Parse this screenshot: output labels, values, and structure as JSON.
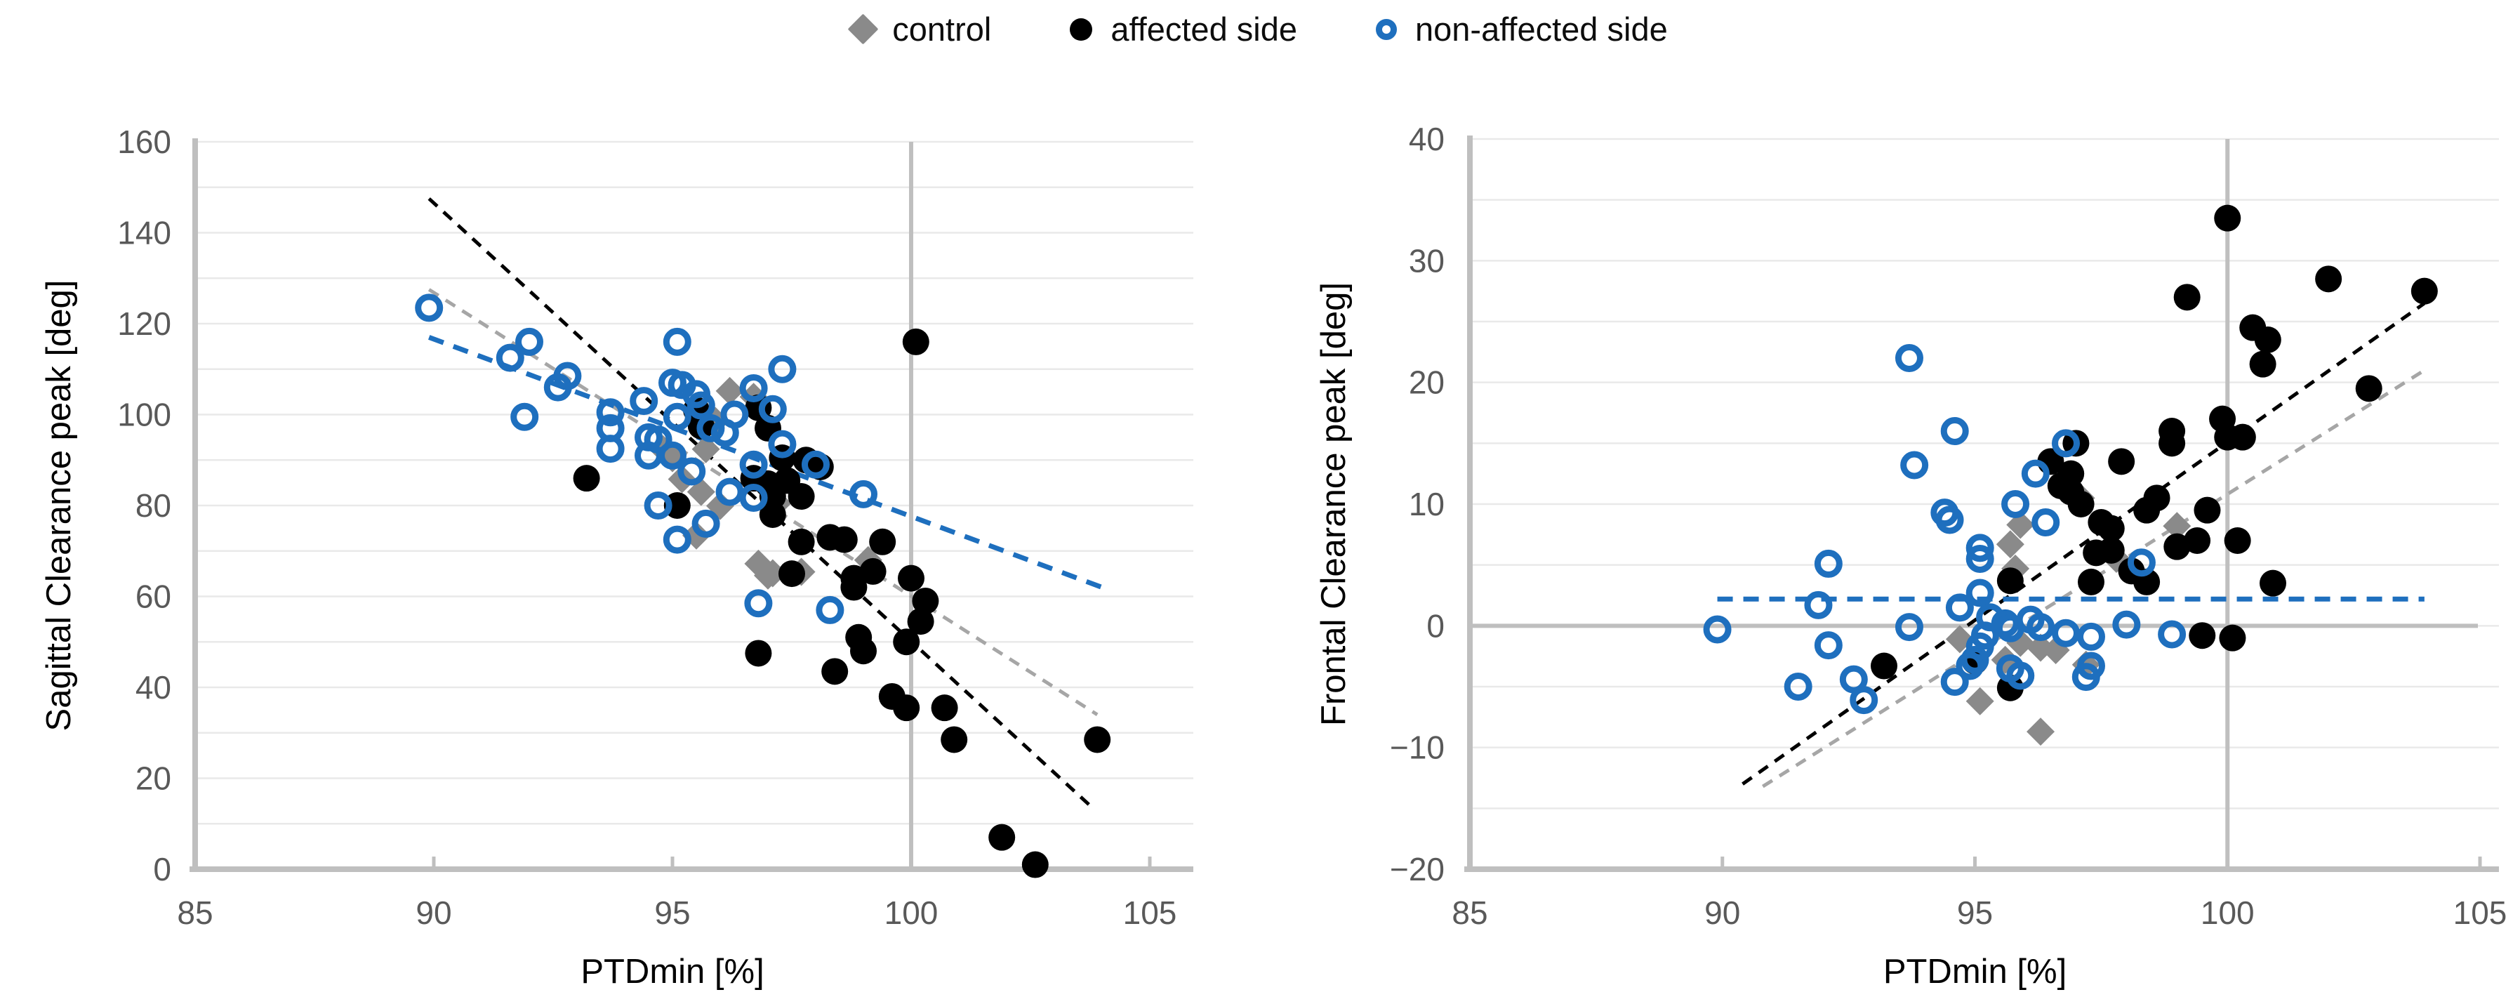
{
  "legend": {
    "items": [
      {
        "label": "control",
        "series": "control"
      },
      {
        "label": "affected side",
        "series": "affected"
      },
      {
        "label": "non-affected side",
        "series": "non_affected"
      }
    ]
  },
  "colors": {
    "control_marker": "#8a8a8a",
    "affected_marker": "#000000",
    "non_affected_marker": "#1e6fbe",
    "trend_control": "#a6a6a6",
    "trend_affected": "#000000",
    "trend_non_affected": "#1e6fbe",
    "axis_line": "#bfbfbf",
    "gridline": "#e9e9e9",
    "tick_label": "#595959",
    "axis_title": "#000000"
  },
  "chart_data": [
    {
      "type": "scatter",
      "panel": "left",
      "xlabel": "PTDmin [%]",
      "ylabel": "Sagittal Clearance peak  [deg]",
      "xlim": [
        85,
        105
      ],
      "ylim": [
        0,
        160
      ],
      "xticks": [
        85,
        90,
        95,
        100,
        105
      ],
      "yticks": [
        0,
        20,
        40,
        60,
        80,
        100,
        120,
        140,
        160
      ],
      "grid": "on",
      "gridline_step_y": 10,
      "ref_line_x": 100,
      "ref_line_y": null,
      "legend_position": "top-center",
      "series": [
        {
          "name": "control",
          "marker": "diamond",
          "points": [
            [
              96.2,
              105.2
            ],
            [
              96.7,
              103.9
            ],
            [
              95.9,
              98.6
            ],
            [
              94.8,
              92.4
            ],
            [
              95.7,
              92.4
            ],
            [
              95.0,
              90.4
            ],
            [
              95.2,
              85.8
            ],
            [
              95.6,
              83.0
            ],
            [
              96.0,
              79.9
            ],
            [
              97.2,
              80.5
            ],
            [
              95.5,
              73.4
            ],
            [
              96.8,
              67.2
            ],
            [
              97.0,
              64.6
            ],
            [
              99.1,
              68.0
            ],
            [
              97.7,
              65.4
            ],
            [
              97.1,
              65.1
            ]
          ]
        },
        {
          "name": "affected side",
          "marker": "filled-circle",
          "points": [
            [
              93.2,
              86
            ],
            [
              95.1,
              80
            ],
            [
              95.5,
              101
            ],
            [
              96.8,
              101.5
            ],
            [
              95.6,
              97.5
            ],
            [
              97.0,
              97
            ],
            [
              100.1,
              116
            ],
            [
              97.3,
              90.5
            ],
            [
              97.8,
              90
            ],
            [
              98.1,
              88.5
            ],
            [
              97.4,
              85.5
            ],
            [
              96.7,
              86
            ],
            [
              97.0,
              84.8
            ],
            [
              97.1,
              82
            ],
            [
              97.7,
              82
            ],
            [
              97.1,
              78
            ],
            [
              97.7,
              72
            ],
            [
              98.3,
              73
            ],
            [
              98.6,
              72.5
            ],
            [
              99.4,
              72
            ],
            [
              97.5,
              65
            ],
            [
              98.8,
              64
            ],
            [
              99.2,
              65.5
            ],
            [
              100.0,
              64
            ],
            [
              98.8,
              62
            ],
            [
              100.3,
              59
            ],
            [
              100.2,
              54.5
            ],
            [
              98.9,
              51
            ],
            [
              99.0,
              48
            ],
            [
              99.9,
              50
            ],
            [
              96.8,
              47.5
            ],
            [
              98.4,
              43.5
            ],
            [
              99.6,
              38
            ],
            [
              99.9,
              35.5
            ],
            [
              100.7,
              35.5
            ],
            [
              100.9,
              28.5
            ],
            [
              103.9,
              28.5
            ],
            [
              101.9,
              7
            ],
            [
              102.6,
              1
            ]
          ]
        },
        {
          "name": "non-affected side",
          "marker": "open-circle",
          "points": [
            [
              89.9,
              123.5
            ],
            [
              92.0,
              116
            ],
            [
              91.6,
              112.5
            ],
            [
              92.8,
              108.5
            ],
            [
              92.6,
              106
            ],
            [
              91.9,
              99.5
            ],
            [
              93.7,
              100.5
            ],
            [
              93.7,
              97
            ],
            [
              93.7,
              92.5
            ],
            [
              94.4,
              103
            ],
            [
              95.1,
              116
            ],
            [
              95.0,
              107
            ],
            [
              95.2,
              106.5
            ],
            [
              95.5,
              104.5
            ],
            [
              95.6,
              102
            ],
            [
              96.3,
              100
            ],
            [
              95.1,
              99.5
            ],
            [
              94.5,
              95
            ],
            [
              94.7,
              94.5
            ],
            [
              95.8,
              97
            ],
            [
              96.1,
              96
            ],
            [
              94.5,
              91
            ],
            [
              95.0,
              91
            ],
            [
              95.4,
              87.5
            ],
            [
              96.7,
              89
            ],
            [
              96.7,
              105.8
            ],
            [
              97.3,
              110
            ],
            [
              97.1,
              101.2
            ],
            [
              97.3,
              93.5
            ],
            [
              98.0,
              89
            ],
            [
              96.2,
              83
            ],
            [
              96.7,
              81.7
            ],
            [
              94.7,
              80
            ],
            [
              95.7,
              76
            ],
            [
              95.1,
              72.5
            ],
            [
              99.0,
              82.5
            ],
            [
              98.3,
              57
            ],
            [
              96.8,
              58.5
            ]
          ]
        }
      ],
      "trendlines": [
        {
          "series": "control",
          "style": "dashed",
          "x1": 89.9,
          "y1": 127.5,
          "x2": 103.9,
          "y2": 34
        },
        {
          "series": "affected",
          "style": "dashed",
          "x1": 89.9,
          "y1": 147.5,
          "x2": 103.8,
          "y2": 13.5
        },
        {
          "series": "non_affected",
          "style": "dashed",
          "x1": 89.9,
          "y1": 117,
          "x2": 104.0,
          "y2": 62
        }
      ]
    },
    {
      "type": "scatter",
      "panel": "right",
      "xlabel": "PTDmin [%]",
      "ylabel": "Frontal Clearance peak  [deg]",
      "xlim": [
        85,
        105
      ],
      "ylim": [
        -20,
        40
      ],
      "xticks": [
        85,
        90,
        95,
        100,
        105
      ],
      "yticks": [
        -20,
        -10,
        0,
        10,
        20,
        30,
        40
      ],
      "grid": "on",
      "gridline_step_y": 5,
      "ref_line_x": 100,
      "ref_line_y": 0,
      "legend_position": "top-center",
      "series": [
        {
          "name": "control",
          "marker": "diamond",
          "points": [
            [
              95.9,
              8.3
            ],
            [
              95.7,
              6.7
            ],
            [
              95.8,
              4.7
            ],
            [
              97.8,
              5.5
            ],
            [
              99.0,
              8.2
            ],
            [
              97.1,
              10.5
            ],
            [
              94.7,
              -1.1
            ],
            [
              95.9,
              -1.4
            ],
            [
              95.6,
              -2.8
            ],
            [
              96.3,
              -1.8
            ],
            [
              96.6,
              -2.0
            ],
            [
              97.2,
              -3.2
            ],
            [
              95.1,
              -6.2
            ],
            [
              96.3,
              -8.7
            ]
          ]
        },
        {
          "name": "affected side",
          "marker": "filled-circle",
          "points": [
            [
              100.0,
              33.5
            ],
            [
              102.0,
              28.5
            ],
            [
              103.9,
              27.5
            ],
            [
              99.2,
              27
            ],
            [
              100.5,
              24.5
            ],
            [
              100.8,
              23.5
            ],
            [
              100.7,
              21.5
            ],
            [
              102.8,
              19.5
            ],
            [
              99.9,
              17
            ],
            [
              100.0,
              15.5
            ],
            [
              100.3,
              15.5
            ],
            [
              98.9,
              16
            ],
            [
              98.9,
              15
            ],
            [
              97.9,
              13.5
            ],
            [
              97.0,
              15
            ],
            [
              96.5,
              13.5
            ],
            [
              96.9,
              12.5
            ],
            [
              96.7,
              11.5
            ],
            [
              96.9,
              11
            ],
            [
              97.1,
              10
            ],
            [
              97.5,
              8.5
            ],
            [
              97.7,
              8
            ],
            [
              98.4,
              9.5
            ],
            [
              98.6,
              10.5
            ],
            [
              99.6,
              9.5
            ],
            [
              100.2,
              7
            ],
            [
              99.4,
              7
            ],
            [
              99.0,
              6.5
            ],
            [
              97.4,
              6
            ],
            [
              97.7,
              6.2
            ],
            [
              98.1,
              4.5
            ],
            [
              98.4,
              3.6
            ],
            [
              97.3,
              3.6
            ],
            [
              100.9,
              3.5
            ],
            [
              95.7,
              3.7
            ],
            [
              99.5,
              -0.8
            ],
            [
              100.1,
              -1
            ],
            [
              95.0,
              -2.9
            ],
            [
              93.2,
              -3.3
            ],
            [
              95.7,
              -5.1
            ]
          ]
        },
        {
          "name": "non-affected side",
          "marker": "open-circle",
          "points": [
            [
              93.7,
              22
            ],
            [
              94.6,
              16
            ],
            [
              93.8,
              13.2
            ],
            [
              96.8,
              15
            ],
            [
              96.2,
              12.5
            ],
            [
              95.8,
              10
            ],
            [
              96.4,
              8.5
            ],
            [
              94.4,
              9.3
            ],
            [
              94.5,
              8.7
            ],
            [
              95.1,
              6.4
            ],
            [
              95.1,
              5.5
            ],
            [
              92.1,
              5.1
            ],
            [
              91.9,
              1.7
            ],
            [
              92.1,
              -1.6
            ],
            [
              93.7,
              -0.1
            ],
            [
              89.9,
              -0.3
            ],
            [
              94.7,
              1.5
            ],
            [
              95.1,
              2.7
            ],
            [
              95.3,
              0.7
            ],
            [
              95.6,
              0.2
            ],
            [
              95.7,
              -0.2
            ],
            [
              95.2,
              -0.8
            ],
            [
              95.1,
              -1.7
            ],
            [
              95.0,
              -2.8
            ],
            [
              94.9,
              -3.3
            ],
            [
              95.7,
              -3.5
            ],
            [
              95.9,
              -4.1
            ],
            [
              94.6,
              -4.6
            ],
            [
              92.6,
              -4.4
            ],
            [
              91.5,
              -5.0
            ],
            [
              92.8,
              -6.1
            ],
            [
              96.1,
              0.5
            ],
            [
              96.3,
              -0.1
            ],
            [
              96.8,
              -0.6
            ],
            [
              98.3,
              5.2
            ],
            [
              98.0,
              0.1
            ],
            [
              98.9,
              -0.7
            ],
            [
              97.3,
              -0.9
            ],
            [
              97.3,
              -3.3
            ],
            [
              97.2,
              -4.2
            ]
          ]
        }
      ],
      "trendlines": [
        {
          "series": "control",
          "style": "dashed",
          "x1": 90.8,
          "y1": -13.2,
          "x2": 103.9,
          "y2": 21
        },
        {
          "series": "affected",
          "style": "dashed",
          "x1": 90.4,
          "y1": -13,
          "x2": 103.9,
          "y2": 26.5
        },
        {
          "series": "non_affected",
          "style": "dashed",
          "x1": 89.9,
          "y1": 2.2,
          "x2": 103.9,
          "y2": 2.2
        }
      ]
    }
  ]
}
